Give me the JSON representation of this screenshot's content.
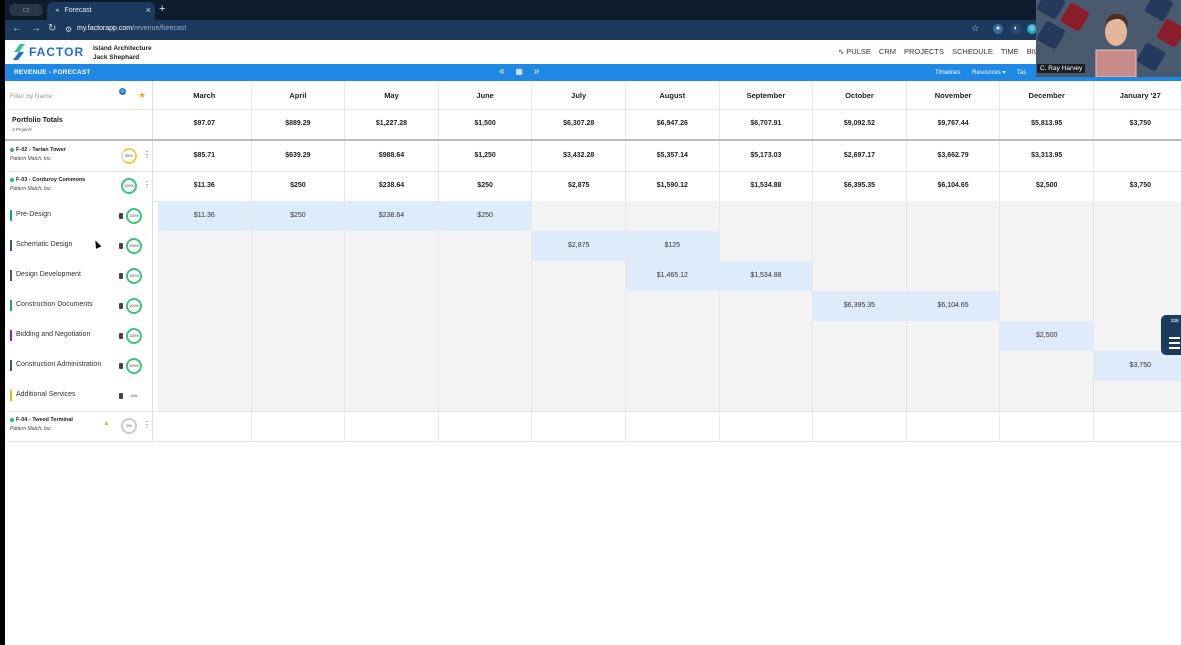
{
  "browser": {
    "tab_title": "Forecast",
    "new_tab": "+",
    "url_host": "my.factorapp.com",
    "url_path": "/revenue/forecast"
  },
  "app": {
    "logo": "FACTOR",
    "org_name": "Island Architecture",
    "user_name": "Jack Shephard",
    "nav": [
      "PULSE",
      "CRM",
      "PROJECTS",
      "SCHEDULE",
      "TIME",
      "BIL"
    ]
  },
  "module": {
    "title": "REVENUE - FORECAST",
    "prev": "«",
    "next": "»",
    "right_links": [
      "Timelines",
      "Resources ▾",
      "Tas"
    ]
  },
  "filter": {
    "placeholder": "Filter by Name",
    "badge": "2"
  },
  "months": [
    "March",
    "April",
    "May",
    "June",
    "July",
    "August",
    "September",
    "October",
    "November",
    "December",
    "January '27"
  ],
  "portfolio": {
    "title": "Portfolio Totals",
    "subtitle": "3 Projects",
    "values": [
      "$97.07",
      "$889.29",
      "$1,227.28",
      "$1,500",
      "$6,307.28",
      "$6,947.26",
      "$6,707.91",
      "$9,092.52",
      "$9,767.44",
      "$5,813.95",
      "$3,750"
    ]
  },
  "projects": [
    {
      "name": "F-02 - Tartan Tower",
      "client": "Pattern Match, Inc.",
      "progress": "89%",
      "values": [
        "$85.71",
        "$639.29",
        "$988.64",
        "$1,250",
        "$3,432.28",
        "$5,357.14",
        "$5,173.03",
        "$2,697.17",
        "$3,662.79",
        "$3,313.95",
        ""
      ]
    },
    {
      "name": "F-03 - Corduroy Commons",
      "client": "Pattern Match, Inc.",
      "progress": "100%",
      "values": [
        "$11.36",
        "$250",
        "$238.64",
        "$250",
        "$2,875",
        "$1,590.12",
        "$1,534.88",
        "$6,395.35",
        "$6,104.65",
        "$2,500",
        "$3,750"
      ]
    }
  ],
  "phases": [
    {
      "label": "Pre-Design",
      "color": "#1aa37a",
      "progress": "100%",
      "values": [
        "$11.36",
        "$250",
        "$238.64",
        "$250",
        "",
        "",
        "",
        "",
        "",
        "",
        ""
      ],
      "active": [
        0,
        1,
        2,
        3
      ]
    },
    {
      "label": "Schematic Design",
      "color": "#3f5875",
      "progress": "100%",
      "values": [
        "",
        "",
        "",
        "",
        "$2,875",
        "$125",
        "",
        "",
        "",
        "",
        ""
      ],
      "active": [
        4,
        5
      ]
    },
    {
      "label": "Design Development",
      "color": "#555555",
      "progress": "100%",
      "values": [
        "",
        "",
        "",
        "",
        "",
        "$1,465.12",
        "$1,534.88",
        "",
        "",
        "",
        ""
      ],
      "active": [
        5,
        6
      ]
    },
    {
      "label": "Construction Documents",
      "color": "#1aa37a",
      "progress": "100%",
      "values": [
        "",
        "",
        "",
        "",
        "",
        "",
        "",
        "$6,395.35",
        "$6,104.65",
        "",
        ""
      ],
      "active": [
        7,
        8
      ]
    },
    {
      "label": "Bidding and Negotiation",
      "color": "#8e24aa",
      "progress": "100%",
      "values": [
        "",
        "",
        "",
        "",
        "",
        "",
        "",
        "",
        "",
        "$2,500",
        ""
      ],
      "active": [
        9
      ]
    },
    {
      "label": "Construction Administration",
      "color": "#3f5875",
      "progress": "100%",
      "values": [
        "",
        "",
        "",
        "",
        "",
        "",
        "",
        "",
        "",
        "",
        "$3,750"
      ],
      "active": [
        10
      ]
    },
    {
      "label": "Additional Services",
      "color": "#f2b01e",
      "progress": "N/A",
      "values": [
        "",
        "",
        "",
        "",
        "",
        "",
        "",
        "",
        "",
        "",
        ""
      ],
      "active": []
    }
  ],
  "project_f04": {
    "name": "F-04 - Tweed Terminal",
    "client": "Pattern Match, Inc.",
    "progress": "0%"
  },
  "webcam": {
    "label": "C. Ray Harvey"
  },
  "help_widget": {
    "badge": "236"
  }
}
